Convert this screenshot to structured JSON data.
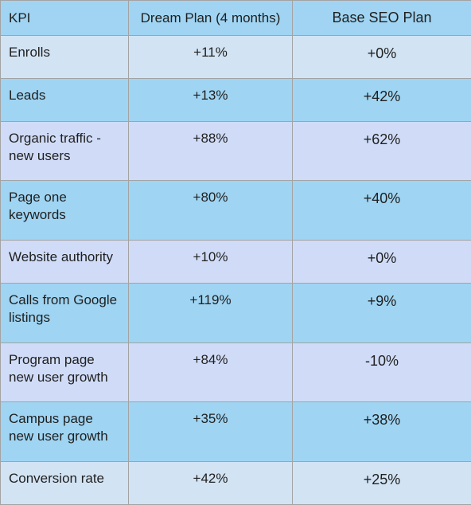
{
  "table": {
    "headers": {
      "kpi": "KPI",
      "dream": "Dream Plan (4 months)",
      "base": "Base SEO Plan"
    },
    "rows": [
      {
        "kpi": "Enrolls",
        "dream": "+11%",
        "base": "+0%"
      },
      {
        "kpi": "Leads",
        "dream": "+13%",
        "base": "+42%"
      },
      {
        "kpi": "Organic traffic -\nnew users",
        "dream": "+88%",
        "base": "+62%"
      },
      {
        "kpi": "Page one\nkeywords",
        "dream": "+80%",
        "base": "+40%"
      },
      {
        "kpi": "Website authority",
        "dream": "+10%",
        "base": "+0%"
      },
      {
        "kpi": "Calls from Google\nlistings",
        "dream": "+119%",
        "base": "+9%"
      },
      {
        "kpi": "Program page\nnew user growth",
        "dream": "+84%",
        "base": "-10%"
      },
      {
        "kpi": "Campus page\nnew user growth",
        "dream": "+35%",
        "base": "+38%"
      },
      {
        "kpi": "Conversion rate",
        "dream": "+42%",
        "base": "+25%"
      }
    ]
  }
}
